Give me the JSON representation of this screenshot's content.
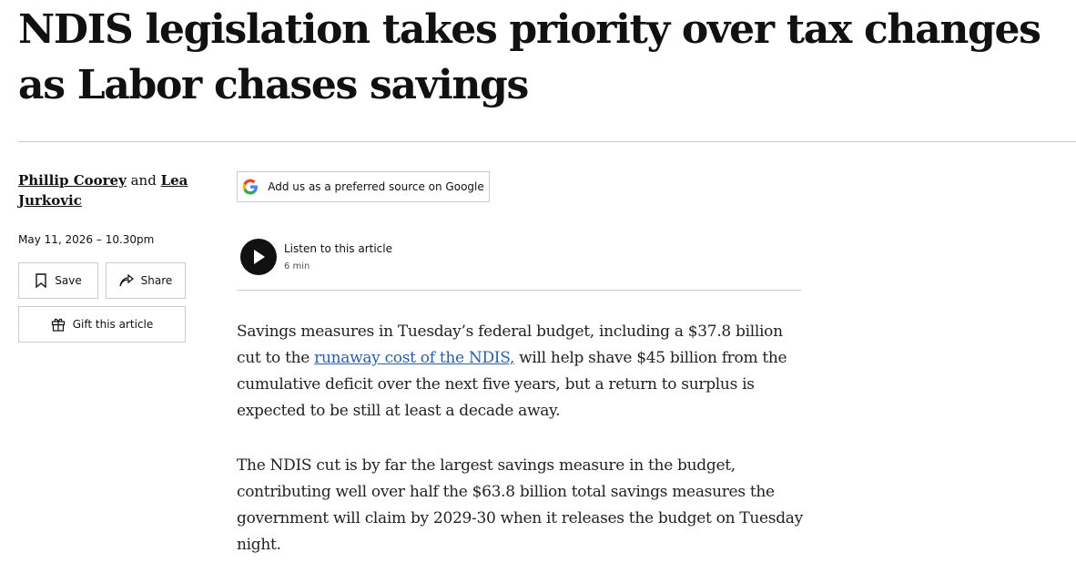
{
  "headline": "NDIS legislation takes priority over tax changes as Labor chases savings",
  "byline": {
    "author_1": "Phillip Coorey",
    "joiner": "and",
    "author_2": "Lea Jurkovic"
  },
  "date": "May 11, 2026 – 10.30pm",
  "actions": {
    "save": "Save",
    "share": "Share",
    "gift": "Gift this article"
  },
  "google_source": "Add us as a preferred source on Google",
  "audio": {
    "label": "Listen to this article",
    "duration": "6 min"
  },
  "body": {
    "paragraph_1": {
      "before": "Savings measures in Tuesday’s federal budget, including a $37.8 billion cut to the ",
      "link": "runaway cost of the NDIS,",
      "after": " will help shave $45 billion from the cumulative deficit over the next five years, but a return to surplus is expected to be still at least a decade away."
    },
    "paragraph_2": "The NDIS cut is by far the largest savings measure in the budget, contributing well over half the $63.8 billion total savings measures the government will claim by 2029-30 when it releases the budget on Tuesday night."
  }
}
